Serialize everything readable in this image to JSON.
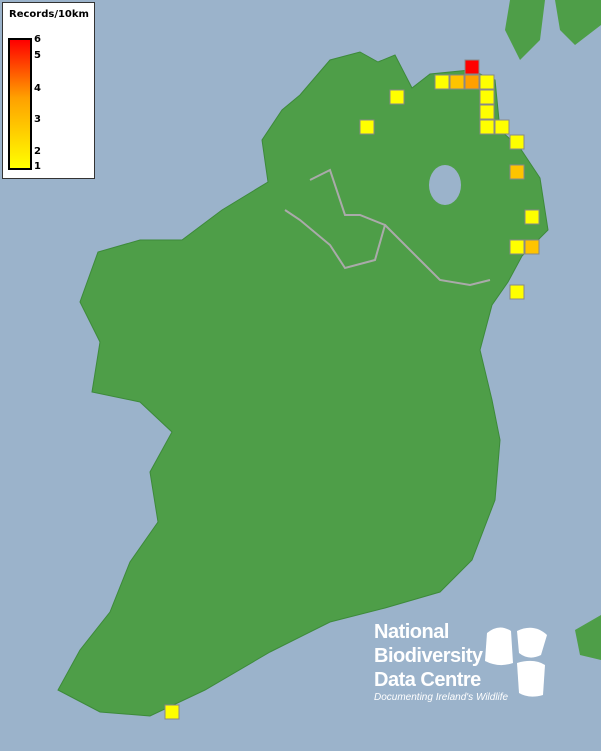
{
  "legend": {
    "title": "Records/10km",
    "ticks": [
      "6",
      "5",
      "4",
      "3",
      "2",
      "1"
    ],
    "colors": {
      "low": "#ffff00",
      "mid": "#ffa000",
      "high": "#ff0000"
    }
  },
  "map": {
    "sea_color": "#9bb3cb",
    "land_color": "#4e9e48",
    "grid_square_records": [
      6,
      1,
      2,
      3,
      1,
      1,
      1,
      1,
      1,
      1,
      1,
      1,
      2,
      1,
      1,
      2,
      1,
      1
    ]
  },
  "logo": {
    "line1": "National",
    "line2": "Biodiversity",
    "line3": "Data Centre",
    "tagline": "Documenting Ireland's Wildlife"
  }
}
